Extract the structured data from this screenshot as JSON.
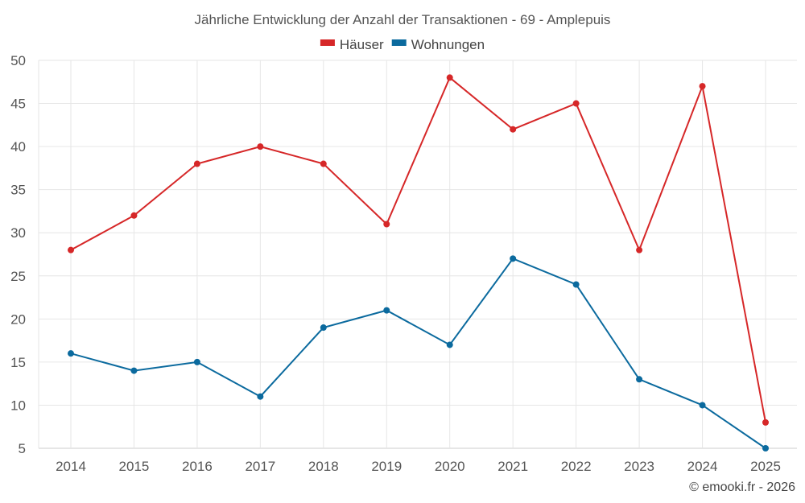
{
  "chart_data": {
    "type": "line",
    "title": "Jährliche Entwicklung der Anzahl der Transaktionen - 69 - Amplepuis",
    "categories": [
      "2014",
      "2015",
      "2016",
      "2017",
      "2018",
      "2019",
      "2020",
      "2021",
      "2022",
      "2023",
      "2024",
      "2025"
    ],
    "series": [
      {
        "name": "Häuser",
        "color": "#d62728",
        "values": [
          28,
          32,
          38,
          40,
          38,
          31,
          48,
          42,
          45,
          28,
          47,
          8
        ]
      },
      {
        "name": "Wohnungen",
        "color": "#0b6a9e",
        "values": [
          16,
          14,
          15,
          11,
          19,
          21,
          17,
          27,
          24,
          13,
          10,
          5
        ]
      }
    ],
    "yticks": [
      5,
      10,
      15,
      20,
      25,
      30,
      35,
      40,
      45,
      50
    ],
    "ylim": [
      5,
      50
    ],
    "xlabel": "",
    "ylabel": "",
    "grid": true,
    "legend_position": "top-center"
  },
  "credit": "© emooki.fr - 2026"
}
